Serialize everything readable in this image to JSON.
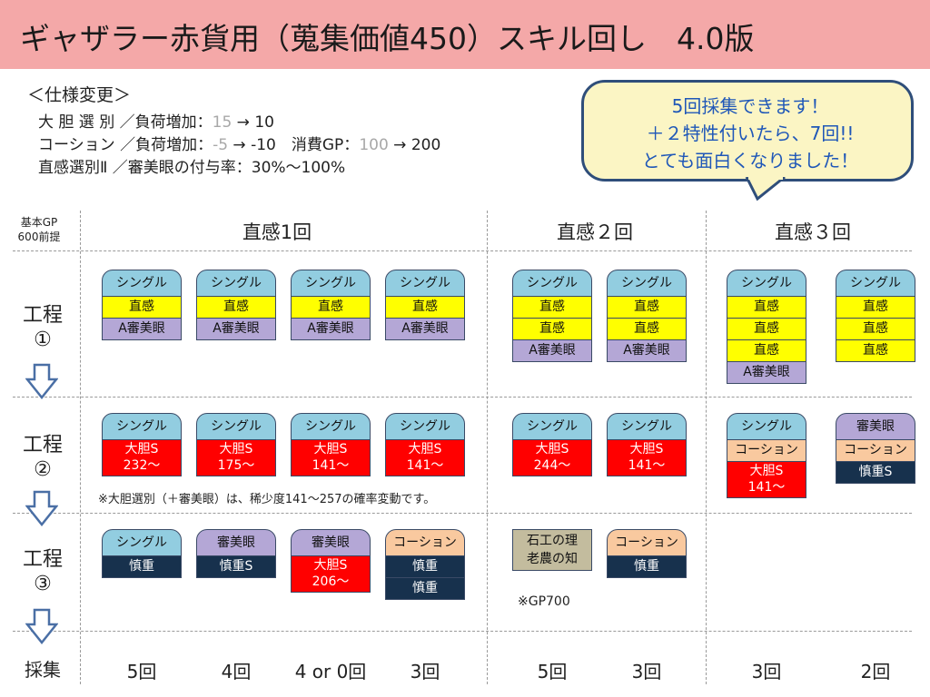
{
  "title": "ギャザラー赤貨用（蒐集価値450）スキル回し　4.0版",
  "spec": {
    "heading": "＜仕様変更＞",
    "line1": {
      "name": "大 胆 選 別 ／負荷増加：",
      "old": "15",
      "arrow": " → ",
      "new": "10"
    },
    "line2": {
      "name": "コーション ／負荷増加：",
      "old": "-5",
      "arrow": " → ",
      "new": "-10",
      "gp_label": "　消費GP：",
      "gp_old": "100",
      "gp_arrow": " → ",
      "gp_new": "200"
    },
    "line3": "直感選別Ⅱ ／審美眼の付与率：30%～100%"
  },
  "bubble": {
    "line1": "5回採集できます！",
    "line2": "＋２特性付いたら、7回!!",
    "line3": "とても面白くなりました！"
  },
  "corner": {
    "line1": "基本GP",
    "line2": "600前提"
  },
  "columns": [
    "直感1回",
    "直感２回",
    "直感３回"
  ],
  "steps": [
    {
      "line1": "工程",
      "line2": "①"
    },
    {
      "line1": "工程",
      "line2": "②"
    },
    {
      "line1": "工程",
      "line2": "③"
    }
  ],
  "gather_label": "採集",
  "counts": [
    "5回",
    "4回",
    "4 or 0回",
    "3回",
    "5回",
    "3回",
    "3回",
    "2回"
  ],
  "note_daitan": "※大胆選別（＋審美眼）は、稀少度141～257の確率変動です。",
  "note_gp": "※GP700",
  "labels": {
    "single": "シングル",
    "chokkan": "直感",
    "a_shinbi": "A審美眼",
    "shinbi": "審美眼",
    "daitan": "大胆S",
    "shincho": "慎重",
    "shincho_s": "慎重S",
    "cousion": "コーション",
    "ishi1": "石工の理",
    "ishi2": "老農の知"
  },
  "daitan_values": [
    "232～",
    "175～",
    "141～",
    "141～",
    "244～",
    "141～",
    "141～"
  ],
  "daitan_values_step3": [
    "206～"
  ],
  "colors": {
    "title_bg": "#f4a8a8",
    "single": "#92cde0",
    "chokkan": "#ffff00",
    "shinbi": "#b4a7d6",
    "daitan": "#ff0000",
    "shincho": "#17314d",
    "cousion": "#f9c99f",
    "bubble_bg": "#fbf5c4",
    "bubble_text": "#1f57b8",
    "arrow": "#4a6fa5"
  }
}
